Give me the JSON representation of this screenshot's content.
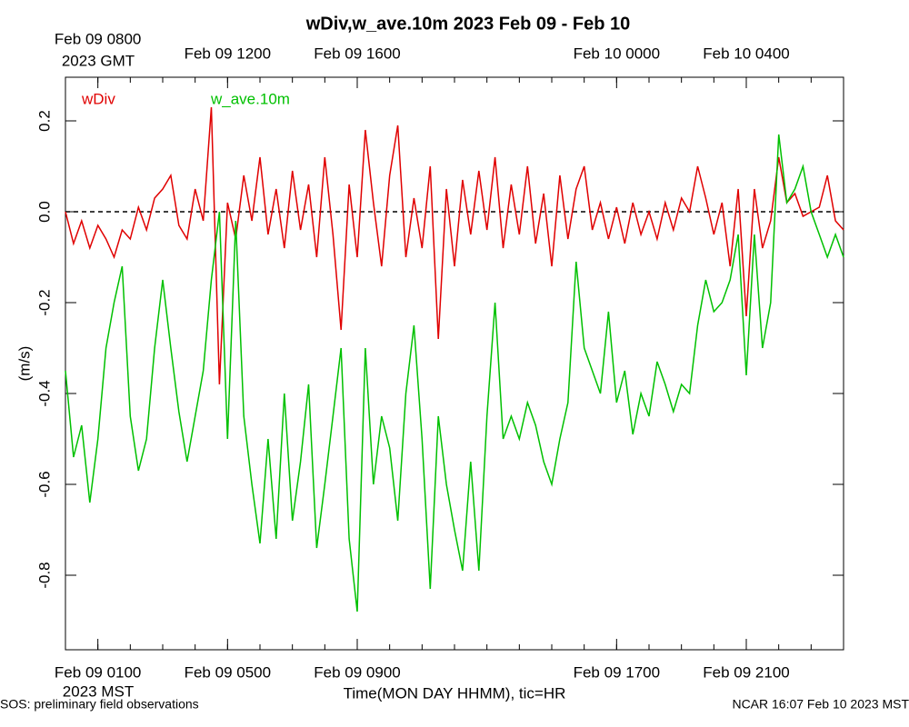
{
  "chart_data": {
    "type": "line",
    "title": "wDiv,w_ave.10m 2023 Feb 09 - Feb 10",
    "xlabel": "Time(MON DAY HHMM), tic=HR",
    "ylabel": "(m/s)",
    "x_sublabel": "2023 MST",
    "x2_sublabel": "2023 GMT",
    "footer_left": "SOS: preliminary field observations",
    "footer_right": "NCAR 16:07 Feb 10 2023 MST",
    "xlim": [
      0,
      24
    ],
    "ylim": [
      -0.964,
      0.296
    ],
    "yticks": [
      -0.8,
      -0.6,
      -0.4,
      -0.2,
      {
        "value": 0,
        "label": "0.0"
      },
      0.2
    ],
    "xticks": [
      {
        "value": 1,
        "label": "Feb 09 0100"
      },
      {
        "value": 5,
        "label": "Feb 09 0500"
      },
      {
        "value": 9,
        "label": "Feb 09 0900"
      },
      {
        "value": 17,
        "label": "Feb 09 1700"
      },
      {
        "value": 21,
        "label": "Feb 09 2100"
      }
    ],
    "x2ticks": [
      {
        "value": 1,
        "label": "Feb 09 0800"
      },
      {
        "value": 5,
        "label": "Feb 09 1200"
      },
      {
        "value": 9,
        "label": "Feb 09 1600"
      },
      {
        "value": 17,
        "label": "Feb 10 0000"
      },
      {
        "value": 21,
        "label": "Feb 10 0400"
      }
    ],
    "xminorticks": [
      0,
      1,
      2,
      3,
      4,
      5,
      6,
      7,
      8,
      9,
      10,
      11,
      12,
      13,
      14,
      15,
      16,
      17,
      18,
      19,
      20,
      21,
      22,
      23,
      24
    ],
    "hline": 0,
    "x": [
      0,
      0.25,
      0.5,
      0.75,
      1,
      1.25,
      1.5,
      1.75,
      2,
      2.25,
      2.5,
      2.75,
      3,
      3.25,
      3.5,
      3.75,
      4,
      4.25,
      4.5,
      4.75,
      5,
      5.25,
      5.5,
      5.75,
      6,
      6.25,
      6.5,
      6.75,
      7,
      7.25,
      7.5,
      7.75,
      8,
      8.25,
      8.5,
      8.75,
      9,
      9.25,
      9.5,
      9.75,
      10,
      10.25,
      10.5,
      10.75,
      11,
      11.25,
      11.5,
      11.75,
      12,
      12.25,
      12.5,
      12.75,
      13,
      13.25,
      13.5,
      13.75,
      14,
      14.25,
      14.5,
      14.75,
      15,
      15.25,
      15.5,
      15.75,
      16,
      16.25,
      16.5,
      16.75,
      17,
      17.25,
      17.5,
      17.75,
      18,
      18.25,
      18.5,
      18.75,
      19,
      19.25,
      19.5,
      19.75,
      20,
      20.25,
      20.5,
      20.75,
      21,
      21.25,
      21.5,
      21.75,
      22,
      22.25,
      22.5,
      22.75,
      23,
      23.25,
      23.5,
      23.75,
      24
    ],
    "series": [
      {
        "name": "wDiv",
        "color": "#e00000",
        "values": [
          0.0,
          -0.07,
          -0.02,
          -0.08,
          -0.03,
          -0.06,
          -0.1,
          -0.04,
          -0.06,
          0.01,
          -0.04,
          0.03,
          0.05,
          0.08,
          -0.03,
          -0.06,
          0.05,
          -0.02,
          0.23,
          -0.38,
          0.02,
          -0.06,
          0.08,
          -0.02,
          0.12,
          -0.05,
          0.05,
          -0.08,
          0.09,
          -0.04,
          0.06,
          -0.1,
          0.12,
          -0.05,
          -0.26,
          0.06,
          -0.1,
          0.18,
          0.02,
          -0.12,
          0.08,
          0.19,
          -0.1,
          0.03,
          -0.08,
          0.1,
          -0.28,
          0.05,
          -0.12,
          0.07,
          -0.05,
          0.09,
          -0.04,
          0.12,
          -0.08,
          0.06,
          -0.05,
          0.1,
          -0.07,
          0.04,
          -0.12,
          0.08,
          -0.06,
          0.05,
          0.1,
          -0.04,
          0.02,
          -0.06,
          0.01,
          -0.07,
          0.02,
          -0.05,
          0.0,
          -0.06,
          0.02,
          -0.04,
          0.03,
          0.0,
          0.1,
          0.03,
          -0.05,
          0.02,
          -0.12,
          0.05,
          -0.23,
          0.05,
          -0.08,
          -0.02,
          0.12,
          0.02,
          0.04,
          -0.01,
          0.0,
          0.01,
          0.08,
          -0.02,
          -0.04
        ]
      },
      {
        "name": "w_ave.10m",
        "color": "#00c000",
        "values": [
          -0.35,
          -0.54,
          -0.47,
          -0.64,
          -0.5,
          -0.3,
          -0.2,
          -0.12,
          -0.45,
          -0.57,
          -0.5,
          -0.3,
          -0.15,
          -0.3,
          -0.44,
          -0.55,
          -0.45,
          -0.35,
          -0.15,
          0.0,
          -0.5,
          -0.02,
          -0.45,
          -0.6,
          -0.73,
          -0.5,
          -0.72,
          -0.4,
          -0.68,
          -0.55,
          -0.38,
          -0.74,
          -0.6,
          -0.45,
          -0.3,
          -0.72,
          -0.88,
          -0.3,
          -0.6,
          -0.45,
          -0.52,
          -0.68,
          -0.4,
          -0.25,
          -0.5,
          -0.83,
          -0.45,
          -0.6,
          -0.7,
          -0.79,
          -0.55,
          -0.79,
          -0.45,
          -0.2,
          -0.5,
          -0.45,
          -0.5,
          -0.42,
          -0.47,
          -0.55,
          -0.6,
          -0.5,
          -0.42,
          -0.11,
          -0.3,
          -0.35,
          -0.4,
          -0.22,
          -0.42,
          -0.35,
          -0.49,
          -0.4,
          -0.45,
          -0.33,
          -0.38,
          -0.44,
          -0.38,
          -0.4,
          -0.25,
          -0.15,
          -0.22,
          -0.2,
          -0.15,
          -0.05,
          -0.36,
          -0.05,
          -0.3,
          -0.2,
          0.17,
          0.02,
          0.05,
          0.1,
          0.0,
          -0.05,
          -0.1,
          -0.05,
          -0.1
        ]
      }
    ]
  }
}
